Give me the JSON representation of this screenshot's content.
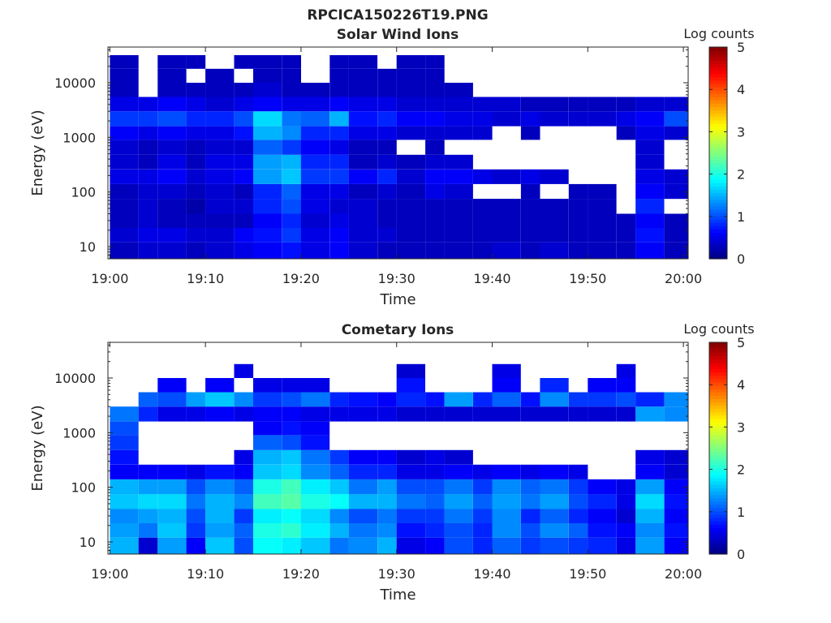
{
  "figure": {
    "title": "RPCICA150226T19.PNG"
  },
  "chart_data": [
    {
      "type": "heatmap",
      "title": "Solar Wind Ions",
      "xlabel": "Time",
      "ylabel": "Energy (eV)",
      "x_ticks": [
        "19:00",
        "19:10",
        "19:20",
        "19:30",
        "19:40",
        "19:50",
        "20:00"
      ],
      "x_range": [
        "19:00",
        "20:00"
      ],
      "y_scale": "log",
      "y_ticks": [
        "10",
        "100",
        "1000",
        "10000"
      ],
      "y_range": [
        6,
        45000
      ],
      "colorbar": {
        "title": "Log counts",
        "ticks": [
          "0",
          "1",
          "2",
          "3",
          "4",
          "5"
        ],
        "range": [
          0,
          5
        ],
        "colormap": "jet"
      },
      "grid": false,
      "time_bins": [
        "19:00",
        "19:03",
        "19:05",
        "19:08",
        "19:10",
        "19:13",
        "19:15",
        "19:18",
        "19:20",
        "19:23",
        "19:25",
        "19:28",
        "19:30",
        "19:33",
        "19:35",
        "19:38",
        "19:40",
        "19:43",
        "19:45",
        "19:48",
        "19:50",
        "19:53",
        "19:55",
        "19:58"
      ],
      "energy_bands": [
        {
          "low": 6,
          "high": 12,
          "values": [
            0.3,
            0.4,
            0.4,
            0.3,
            0.4,
            0.5,
            0.6,
            0.7,
            0.5,
            0.6,
            0.4,
            0.3,
            0.3,
            0.3,
            0.3,
            0.3,
            0.4,
            0.3,
            0.4,
            0.3,
            0.3,
            0.3,
            0.6,
            0.3
          ]
        },
        {
          "low": 12,
          "high": 22,
          "values": [
            0.4,
            0.5,
            0.5,
            0.4,
            0.4,
            0.6,
            0.7,
            0.9,
            0.5,
            0.6,
            0.4,
            0.4,
            0.3,
            0.3,
            0.3,
            0.3,
            0.3,
            0.3,
            0.3,
            0.3,
            0.3,
            0.3,
            0.7,
            0.3
          ]
        },
        {
          "low": 22,
          "high": 40,
          "values": [
            0.3,
            0.4,
            0.3,
            0.3,
            0.3,
            0.3,
            0.6,
            0.8,
            0.4,
            0.5,
            0.4,
            0.3,
            0.3,
            0.3,
            0.3,
            0.3,
            0.3,
            0.3,
            0.3,
            0.3,
            0.3,
            0.3,
            0.6,
            0.3
          ]
        },
        {
          "low": 40,
          "high": 75,
          "values": [
            0.3,
            0.4,
            0.3,
            0.2,
            0.4,
            0.4,
            0.8,
            1.0,
            0.5,
            0.4,
            0.4,
            0.3,
            0.3,
            0.3,
            0.3,
            0.3,
            0.3,
            0.3,
            0.3,
            0.3,
            0.3,
            0.0,
            0.8,
            0.0
          ]
        },
        {
          "low": 75,
          "high": 140,
          "values": [
            0.3,
            0.4,
            0.4,
            0.3,
            0.4,
            0.3,
            0.8,
            1.1,
            0.5,
            0.5,
            0.3,
            0.4,
            0.3,
            0.5,
            0.4,
            0.0,
            0.0,
            0.3,
            0.0,
            0.3,
            0.3,
            0.0,
            0.6,
            0.4
          ]
        },
        {
          "low": 140,
          "high": 260,
          "values": [
            0.5,
            0.5,
            0.6,
            0.4,
            0.5,
            0.6,
            1.4,
            1.6,
            0.9,
            0.9,
            0.6,
            0.8,
            0.4,
            0.6,
            0.6,
            0.5,
            0.4,
            0.5,
            0.4,
            0.0,
            0.0,
            0.0,
            0.5,
            0.4
          ]
        },
        {
          "low": 260,
          "high": 480,
          "values": [
            0.4,
            0.3,
            0.5,
            0.3,
            0.5,
            0.5,
            1.4,
            1.5,
            0.8,
            0.8,
            0.3,
            0.4,
            0.3,
            0.4,
            0.4,
            0.0,
            0.0,
            0.0,
            0.0,
            0.0,
            0.0,
            0.0,
            0.4,
            0.0
          ]
        },
        {
          "low": 480,
          "high": 900,
          "values": [
            0.4,
            0.3,
            0.4,
            0.3,
            0.4,
            0.4,
            1.1,
            0.9,
            0.6,
            0.5,
            0.3,
            0.3,
            0.0,
            0.3,
            0.0,
            0.0,
            0.0,
            0.0,
            0.0,
            0.0,
            0.0,
            0.0,
            0.4,
            0.0
          ]
        },
        {
          "low": 900,
          "high": 1600,
          "values": [
            0.6,
            0.5,
            0.6,
            0.5,
            0.5,
            0.7,
            1.5,
            1.3,
            0.8,
            0.8,
            0.5,
            0.5,
            0.4,
            0.4,
            0.4,
            0.4,
            0.0,
            0.3,
            0.0,
            0.0,
            0.0,
            0.3,
            0.5,
            0.4
          ]
        },
        {
          "low": 1600,
          "high": 3000,
          "values": [
            0.9,
            0.9,
            1.0,
            0.8,
            0.8,
            1.0,
            1.7,
            1.2,
            1.1,
            1.5,
            0.7,
            0.8,
            0.6,
            0.6,
            0.5,
            0.5,
            0.4,
            0.5,
            0.4,
            0.4,
            0.4,
            0.5,
            0.6,
            1.0
          ]
        },
        {
          "low": 3000,
          "high": 5500,
          "values": [
            0.5,
            0.5,
            0.6,
            0.5,
            0.4,
            0.5,
            0.6,
            0.5,
            0.5,
            0.6,
            0.5,
            0.5,
            0.4,
            0.4,
            0.4,
            0.4,
            0.4,
            0.3,
            0.3,
            0.3,
            0.3,
            0.3,
            0.4,
            0.4
          ]
        },
        {
          "low": 5500,
          "high": 10000,
          "values": [
            0.3,
            0.0,
            0.3,
            0.3,
            0.3,
            0.3,
            0.4,
            0.3,
            0.3,
            0.3,
            0.3,
            0.3,
            0.3,
            0.3,
            0.3,
            0.0,
            0.0,
            0.0,
            0.0,
            0.0,
            0.0,
            0.0,
            0.0,
            0.0
          ]
        },
        {
          "low": 10000,
          "high": 18000,
          "values": [
            0.3,
            0.0,
            0.3,
            0.0,
            0.3,
            0.0,
            0.3,
            0.3,
            0.0,
            0.3,
            0.3,
            0.3,
            0.3,
            0.3,
            0.0,
            0.0,
            0.0,
            0.0,
            0.0,
            0.0,
            0.0,
            0.0,
            0.0,
            0.0
          ]
        },
        {
          "low": 18000,
          "high": 32000,
          "values": [
            0.3,
            0.0,
            0.3,
            0.3,
            0.0,
            0.3,
            0.3,
            0.3,
            0.0,
            0.3,
            0.3,
            0.0,
            0.3,
            0.3,
            0.0,
            0.0,
            0.0,
            0.0,
            0.0,
            0.0,
            0.0,
            0.0,
            0.0,
            0.0
          ]
        }
      ]
    },
    {
      "type": "heatmap",
      "title": "Cometary Ions",
      "xlabel": "Time",
      "ylabel": "Energy (eV)",
      "x_ticks": [
        "19:00",
        "19:10",
        "19:20",
        "19:30",
        "19:40",
        "19:50",
        "20:00"
      ],
      "x_range": [
        "19:00",
        "20:00"
      ],
      "y_scale": "log",
      "y_ticks": [
        "10",
        "100",
        "1000",
        "10000"
      ],
      "y_range": [
        6,
        45000
      ],
      "colorbar": {
        "title": "Log counts",
        "ticks": [
          "0",
          "1",
          "2",
          "3",
          "4",
          "5"
        ],
        "range": [
          0,
          5
        ],
        "colormap": "jet"
      },
      "grid": false,
      "time_bins": [
        "19:00",
        "19:03",
        "19:05",
        "19:08",
        "19:10",
        "19:13",
        "19:15",
        "19:18",
        "19:20",
        "19:23",
        "19:25",
        "19:28",
        "19:30",
        "19:33",
        "19:35",
        "19:38",
        "19:40",
        "19:43",
        "19:45",
        "19:48",
        "19:50",
        "19:53",
        "19:55",
        "19:58"
      ],
      "energy_bands": [
        {
          "low": 6,
          "high": 12,
          "values": [
            1.5,
            0.4,
            1.4,
            0.6,
            1.6,
            1.0,
            1.9,
            1.8,
            1.6,
            1.2,
            1.3,
            1.5,
            0.5,
            0.6,
            1.0,
            0.8,
            1.1,
            0.9,
            1.0,
            0.9,
            0.8,
            0.5,
            1.4,
            0.6
          ]
        },
        {
          "low": 12,
          "high": 22,
          "values": [
            1.4,
            1.2,
            1.6,
            0.9,
            1.4,
            1.1,
            2.0,
            2.1,
            1.8,
            1.5,
            1.2,
            1.3,
            0.7,
            0.8,
            1.0,
            0.8,
            1.3,
            1.0,
            1.3,
            1.1,
            0.7,
            0.6,
            1.3,
            0.7
          ]
        },
        {
          "low": 22,
          "high": 40,
          "values": [
            1.3,
            1.4,
            1.5,
            1.0,
            1.5,
            0.9,
            1.8,
            1.9,
            1.7,
            1.3,
            1.0,
            1.2,
            0.9,
            0.9,
            1.2,
            0.9,
            1.3,
            0.8,
            1.1,
            0.8,
            0.6,
            0.4,
            1.5,
            0.6
          ]
        },
        {
          "low": 40,
          "high": 75,
          "values": [
            1.6,
            1.7,
            1.7,
            1.2,
            1.5,
            1.3,
            2.2,
            2.3,
            2.0,
            1.9,
            1.5,
            1.5,
            1.2,
            1.1,
            1.4,
            1.1,
            1.4,
            1.2,
            1.4,
            1.0,
            0.8,
            0.5,
            1.7,
            0.7
          ]
        },
        {
          "low": 75,
          "high": 140,
          "values": [
            1.5,
            1.4,
            1.4,
            1.0,
            1.3,
            1.1,
            2.0,
            2.2,
            1.8,
            1.6,
            1.2,
            1.4,
            1.0,
            1.0,
            1.2,
            0.9,
            1.3,
            1.1,
            1.2,
            0.9,
            0.6,
            0.5,
            1.4,
            0.6
          ]
        },
        {
          "low": 140,
          "high": 260,
          "values": [
            0.6,
            0.6,
            0.6,
            0.5,
            0.7,
            0.6,
            1.6,
            1.7,
            1.3,
            1.1,
            0.8,
            0.8,
            0.5,
            0.5,
            0.6,
            0.5,
            0.6,
            0.5,
            0.6,
            0.5,
            0.0,
            0.0,
            0.6,
            0.4
          ]
        },
        {
          "low": 260,
          "high": 480,
          "values": [
            0.7,
            0.0,
            0.0,
            0.0,
            0.0,
            0.5,
            1.5,
            1.6,
            1.2,
            0.9,
            0.6,
            0.6,
            0.4,
            0.5,
            0.4,
            0.0,
            0.0,
            0.0,
            0.0,
            0.0,
            0.0,
            0.0,
            0.5,
            0.4
          ]
        },
        {
          "low": 480,
          "high": 900,
          "values": [
            0.9,
            0.0,
            0.0,
            0.0,
            0.0,
            0.0,
            1.1,
            1.0,
            0.7,
            0.0,
            0.0,
            0.0,
            0.0,
            0.0,
            0.0,
            0.0,
            0.0,
            0.0,
            0.0,
            0.0,
            0.0,
            0.0,
            0.0,
            0.0
          ]
        },
        {
          "low": 900,
          "high": 1600,
          "values": [
            1.0,
            0.0,
            0.0,
            0.0,
            0.0,
            0.0,
            0.6,
            0.7,
            0.6,
            0.0,
            0.0,
            0.0,
            0.0,
            0.0,
            0.0,
            0.0,
            0.0,
            0.0,
            0.0,
            0.0,
            0.0,
            0.0,
            0.0,
            0.0
          ]
        },
        {
          "low": 1600,
          "high": 3000,
          "values": [
            1.2,
            0.8,
            0.5,
            0.5,
            0.6,
            0.5,
            0.6,
            0.6,
            0.5,
            0.5,
            0.5,
            0.5,
            0.4,
            0.4,
            0.4,
            0.4,
            0.4,
            0.4,
            0.4,
            0.4,
            0.4,
            0.4,
            1.4,
            1.3
          ]
        },
        {
          "low": 3000,
          "high": 5500,
          "values": [
            0.0,
            1.1,
            1.0,
            1.4,
            1.6,
            1.3,
            0.9,
            1.0,
            1.2,
            0.8,
            0.7,
            0.6,
            0.8,
            0.7,
            1.4,
            0.8,
            1.1,
            0.7,
            1.3,
            0.9,
            0.9,
            1.0,
            0.8,
            1.3
          ]
        },
        {
          "low": 5500,
          "high": 10000,
          "values": [
            0.0,
            0.0,
            0.6,
            0.0,
            0.6,
            0.0,
            0.5,
            0.5,
            0.5,
            0.0,
            0.0,
            0.0,
            0.7,
            0.0,
            0.0,
            0.0,
            0.6,
            0.0,
            0.8,
            0.0,
            0.6,
            0.6,
            0.0,
            0.0
          ]
        },
        {
          "low": 10000,
          "high": 18000,
          "values": [
            0.0,
            0.0,
            0.0,
            0.0,
            0.0,
            0.5,
            0.0,
            0.0,
            0.0,
            0.0,
            0.0,
            0.0,
            0.4,
            0.0,
            0.0,
            0.0,
            0.5,
            0.0,
            0.0,
            0.0,
            0.0,
            0.5,
            0.0,
            0.0
          ]
        }
      ]
    }
  ]
}
